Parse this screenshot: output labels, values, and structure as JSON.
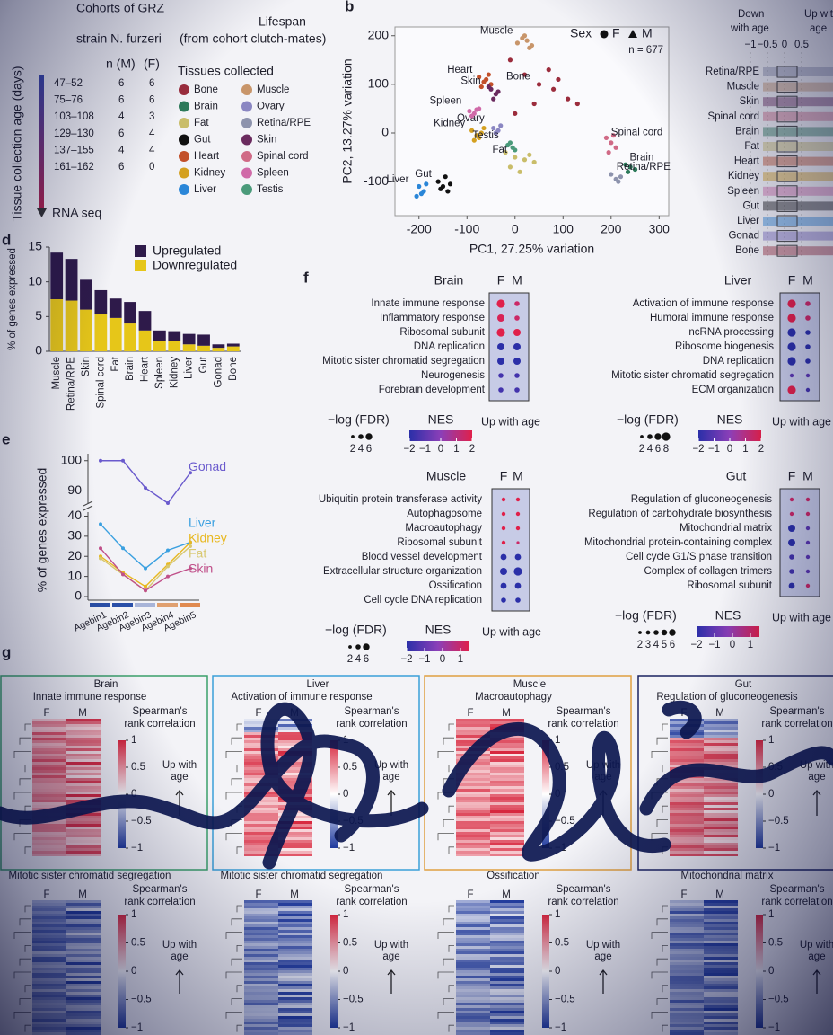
{
  "panel_labels": [
    "b",
    "d",
    "e",
    "f",
    "g"
  ],
  "table": {
    "title": "Cohorts of GRZ",
    "subtitle": "strain N. furzeri",
    "lifespan": "Lifespan",
    "lifespan_note": "(from cohort clutch-mates)",
    "axis_label": "Tissue collection age (days)",
    "columns": [
      "n (M)",
      "(F)"
    ],
    "rows": [
      [
        "47–52",
        6,
        6
      ],
      [
        "75–76",
        6,
        6
      ],
      [
        "103–108",
        4,
        3
      ],
      [
        "129–130",
        6,
        4
      ],
      [
        "137–155",
        4,
        4
      ],
      [
        "161–162",
        6,
        0
      ]
    ],
    "footer": "RNA seq",
    "legend_title": "Tissues collected"
  },
  "panel_c": {
    "header_left": [
      "Down",
      "with age"
    ],
    "header_right": [
      "Up with",
      "age"
    ],
    "ticks": [
      {
        "value": -1,
        "label": "−1"
      },
      {
        "value": -0.5,
        "label": "−0.5"
      },
      0,
      0.5
    ],
    "categories": [
      "Retina/RPE",
      "Muscle",
      "Skin",
      "Spinal cord",
      "Brain",
      "Fat",
      "Heart",
      "Kidney",
      "Spleen",
      "Gut",
      "Liver",
      "Gonad",
      "Bone"
    ]
  },
  "chart_data": [
    {
      "type": "scatter",
      "xlabel": "PC1, 27.25% variation",
      "ylabel": "PC2, 13.27% variation",
      "legend_title": "Sex",
      "markers": [
        "F",
        "M"
      ],
      "annotation": "n = 677",
      "xlim": [
        -250,
        320
      ],
      "xticks": [
        -200,
        -100,
        0,
        100,
        200,
        300
      ],
      "ylim": [
        -170,
        218
      ],
      "yticks": [
        -100,
        0,
        100,
        200
      ],
      "series": [
        {
          "name": "Bone",
          "color": "#9b2c3c",
          "x": [
            -10,
            20,
            50,
            80,
            110,
            40,
            70,
            130,
            0,
            90
          ],
          "y": [
            150,
            120,
            100,
            90,
            70,
            60,
            130,
            60,
            40,
            110
          ]
        },
        {
          "name": "Brain",
          "color": "#2d7a5a",
          "x": [
            230,
            240,
            250,
            235
          ],
          "y": [
            -65,
            -70,
            -75,
            -80
          ]
        },
        {
          "name": "Fat",
          "color": "#c9bd6a",
          "x": [
            -20,
            0,
            20,
            30,
            -10,
            10,
            40
          ],
          "y": [
            -40,
            -50,
            -55,
            -45,
            -70,
            -80,
            -60
          ]
        },
        {
          "name": "Gut",
          "color": "#111111",
          "x": [
            -160,
            -150,
            -140,
            -155,
            -145,
            -135
          ],
          "y": [
            -100,
            -110,
            -120,
            -115,
            -90,
            -105
          ]
        },
        {
          "name": "Heart",
          "color": "#c2502a",
          "x": [
            -75,
            -65,
            -55,
            -50,
            -70,
            -60
          ],
          "y": [
            115,
            105,
            120,
            100,
            95,
            110
          ]
        },
        {
          "name": "Kidney",
          "color": "#d4a020",
          "x": [
            -90,
            -80,
            -70,
            -85,
            -75,
            -65
          ],
          "y": [
            5,
            -5,
            0,
            -15,
            -10,
            10
          ]
        },
        {
          "name": "Liver",
          "color": "#2a86d8",
          "x": [
            -200,
            -195,
            -190,
            -205,
            -185
          ],
          "y": [
            -110,
            -125,
            -120,
            -130,
            -105
          ]
        },
        {
          "name": "Muscle",
          "color": "#c8956a",
          "x": [
            5,
            15,
            25,
            35,
            20,
            30
          ],
          "y": [
            185,
            195,
            190,
            180,
            200,
            175
          ]
        },
        {
          "name": "Ovary",
          "color": "#8a86c2",
          "x": [
            -45,
            -35,
            -40,
            -30
          ],
          "y": [
            10,
            5,
            0,
            15
          ]
        },
        {
          "name": "Retina/RPE",
          "color": "#8d93ad",
          "x": [
            200,
            210,
            220,
            215
          ],
          "y": [
            -85,
            -95,
            -90,
            -100
          ]
        },
        {
          "name": "Skin",
          "color": "#6a2a5e",
          "x": [
            -50,
            -40,
            -45,
            -35,
            -55
          ],
          "y": [
            90,
            80,
            70,
            85,
            95
          ]
        },
        {
          "name": "Spinal cord",
          "color": "#d06a86",
          "x": [
            190,
            200,
            210,
            195,
            205
          ],
          "y": [
            -10,
            -20,
            -30,
            -40,
            -5
          ]
        },
        {
          "name": "Spleen",
          "color": "#d06aa8",
          "x": [
            -95,
            -85,
            -75,
            -90,
            -80
          ],
          "y": [
            45,
            40,
            50,
            35,
            48
          ]
        },
        {
          "name": "Testis",
          "color": "#4a9a7a",
          "x": [
            -15,
            -5,
            -10,
            0
          ],
          "y": [
            -25,
            -30,
            -20,
            -35
          ]
        }
      ]
    },
    {
      "type": "bar",
      "stacked": true,
      "ylabel": "% of genes expressed",
      "categories": [
        "Muscle",
        "Retina/RPE",
        "Skin",
        "Spinal cord",
        "Fat",
        "Brain",
        "Heart",
        "Spleen",
        "Kidney",
        "Liver",
        "Gut",
        "Gonad",
        "Bone"
      ],
      "series": [
        {
          "name": "Upregulated",
          "color": "#2e1a4a",
          "values": [
            6.7,
            6,
            4.3,
            3.5,
            2.8,
            3.1,
            2.8,
            1.5,
            1.4,
            1.5,
            1.6,
            0.5,
            0.4
          ]
        },
        {
          "name": "Downregulated",
          "color": "#e6c619",
          "values": [
            7.5,
            7.3,
            6,
            5.3,
            4.8,
            4,
            3,
            1.5,
            1.5,
            1,
            0.8,
            0.5,
            0.7
          ]
        }
      ],
      "ylim": [
        0,
        15
      ],
      "yticks": [
        0,
        5,
        10,
        15
      ]
    },
    {
      "type": "line",
      "ylabel": "% of genes expressed",
      "categories": [
        "Agebin1",
        "Agebin2",
        "Agebin3",
        "Agebin4",
        "Agebin5"
      ],
      "ylim": [
        0,
        102
      ],
      "axis_break": [
        42,
        86
      ],
      "yticks": [
        0,
        10,
        20,
        30,
        40,
        90,
        100
      ],
      "series": [
        {
          "name": "Gonad",
          "color": "#6a5acd",
          "values": [
            100,
            100,
            91,
            86,
            96
          ]
        },
        {
          "name": "Liver",
          "color": "#3aa0e0",
          "values": [
            36,
            24,
            14,
            23,
            27
          ]
        },
        {
          "name": "Kidney",
          "color": "#e8b820",
          "values": [
            20,
            12,
            5,
            16,
            27
          ]
        },
        {
          "name": "Fat",
          "color": "#d8c870",
          "values": [
            19,
            11,
            3,
            15,
            25
          ]
        },
        {
          "name": "Skin",
          "color": "#c0508a",
          "values": [
            24,
            11,
            3,
            10,
            14
          ]
        }
      ]
    },
    {
      "type": "dotplot",
      "title": "Brain",
      "terms": [
        "Innate immune response",
        "Inflammatory response",
        "Ribosomal subunit",
        "DNA replication",
        "Mitotic sister chromatid segregation",
        "Neurogenesis",
        "Forebrain development"
      ],
      "series": [
        {
          "name": "F",
          "values": [
            2,
            1.8,
            2,
            -2,
            -2,
            -1.5,
            -1.5
          ],
          "sizes": [
            6,
            5,
            6,
            5,
            5,
            3,
            3
          ]
        },
        {
          "name": "M",
          "values": [
            1.5,
            1.5,
            2,
            -2,
            -2,
            -1.5,
            -1.5
          ],
          "sizes": [
            3,
            3,
            5,
            5,
            5,
            3,
            3
          ]
        }
      ],
      "size_label": "−log (FDR)",
      "size_ticks": [
        2,
        4,
        6
      ],
      "color_label": "NES",
      "nes_lim": [
        -2,
        2
      ],
      "nes_ticks": [
        {
          "value": -2,
          "label": "−2"
        },
        {
          "value": -1,
          "label": "−1"
        },
        0,
        1,
        2
      ],
      "note": "Up with age"
    },
    {
      "type": "dotplot",
      "title": "Liver",
      "terms": [
        "Activation of immune response",
        "Humoral immune response",
        "ncRNA processing",
        "Ribosome biogenesis",
        "DNA replication",
        "Mitotic sister chromatid segregation",
        "ECM organization"
      ],
      "series": [
        {
          "name": "F",
          "values": [
            2,
            2,
            -2,
            -2,
            -2,
            -1,
            2
          ],
          "sizes": [
            6,
            6,
            6,
            6,
            6,
            2,
            6
          ]
        },
        {
          "name": "M",
          "values": [
            1.5,
            1.5,
            -2,
            -2,
            -2,
            -1,
            -1.5
          ],
          "sizes": [
            3,
            3,
            3,
            3,
            3,
            2,
            2
          ]
        }
      ],
      "size_label": "−log (FDR)",
      "size_ticks": [
        2,
        4,
        6,
        8
      ],
      "color_label": "NES",
      "nes_lim": [
        -2,
        2
      ],
      "nes_ticks": [
        {
          "value": -2,
          "label": "−2"
        },
        {
          "value": -1,
          "label": "−1"
        },
        0,
        1,
        2
      ],
      "note": "Up with age"
    },
    {
      "type": "dotplot",
      "title": "Muscle",
      "terms": [
        "Ubiquitin protein transferase activity",
        "Autophagosome",
        "Macroautophagy",
        "Ribosomal subunit",
        "Blood vessel development",
        "Extracellular structure organization",
        "Ossification",
        "Cell cycle DNA replication"
      ],
      "series": [
        {
          "name": "F",
          "values": [
            2,
            2,
            2,
            2,
            -2,
            -2,
            -2,
            -2
          ],
          "sizes": [
            2,
            2,
            2,
            2,
            4,
            5,
            4,
            3
          ]
        },
        {
          "name": "M",
          "values": [
            2,
            2,
            2,
            1.5,
            -2,
            -2,
            -2,
            -2
          ],
          "sizes": [
            2,
            2,
            2,
            1,
            4,
            6,
            4,
            3
          ]
        }
      ],
      "size_label": "−log (FDR)",
      "size_ticks": [
        2,
        4,
        6
      ],
      "color_label": "NES",
      "nes_lim": [
        -2,
        1.5
      ],
      "nes_ticks": [
        {
          "value": -2,
          "label": "−2"
        },
        {
          "value": -1,
          "label": "−1"
        },
        0,
        1
      ],
      "note": "Up with age"
    },
    {
      "type": "dotplot",
      "title": "Gut",
      "terms": [
        "Regulation of gluconeogenesis",
        "Regulation of carbohydrate biosynthesis",
        "Mitochondrial matrix",
        "Mitochondrial protein-containing complex",
        "Cell cycle G1/S phase transition",
        "Complex of collagen trimers",
        "Ribosomal subunit"
      ],
      "series": [
        {
          "name": "F",
          "values": [
            1.5,
            1.5,
            -2,
            -2,
            -1.5,
            -1.5,
            -2
          ],
          "sizes": [
            2,
            2,
            5,
            5,
            3,
            3,
            4
          ]
        },
        {
          "name": "M",
          "values": [
            1.5,
            1.5,
            -1,
            -1,
            -1,
            -1,
            1.5
          ],
          "sizes": [
            2,
            2,
            2,
            2,
            2,
            2,
            2
          ]
        }
      ],
      "size_label": "−log (FDR)",
      "size_ticks": [
        2,
        3,
        4,
        5,
        6
      ],
      "color_label": "NES",
      "nes_lim": [
        -2,
        1.5
      ],
      "nes_ticks": [
        {
          "value": -2,
          "label": "−2"
        },
        {
          "value": -1,
          "label": "−1"
        },
        0,
        1
      ],
      "note": "Up with age"
    }
  ],
  "heatmaps": {
    "colorbar_title": [
      "Spearman's",
      "rank correlation"
    ],
    "note": [
      "Up with",
      "age"
    ],
    "columns": [
      "F",
      "M"
    ],
    "colorbar_lim": [
      -1,
      1
    ],
    "colorbar_ticks": [
      1,
      0.5,
      0,
      {
        "value": -0.5,
        "label": "−0.5"
      },
      {
        "value": -1,
        "label": "−1"
      }
    ],
    "panels": [
      {
        "tissue": "Brain",
        "term": "Innate immune response"
      },
      {
        "tissue": "Liver",
        "term": "Activation of immune response"
      },
      {
        "tissue": "Muscle",
        "term": "Macroautophagy"
      },
      {
        "tissue": "Gut",
        "term": "Regulation of gluconeogenesis"
      },
      {
        "term": "Mitotic sister chromatid segregation"
      },
      {
        "term": "Mitotic sister chromatid segregation"
      },
      {
        "term": "Ossification"
      },
      {
        "term": "Mitochondrial matrix"
      }
    ]
  }
}
